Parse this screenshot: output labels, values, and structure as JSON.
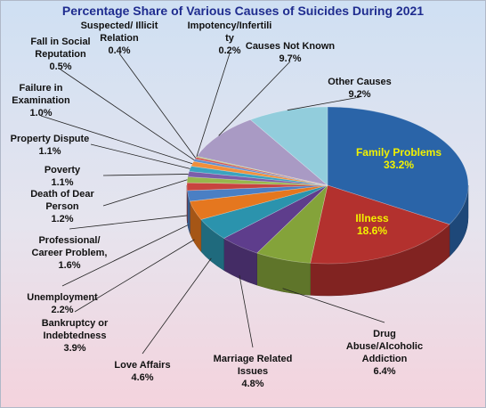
{
  "chart_data": {
    "type": "pie",
    "title": "Percentage Share of Various Causes of Suicides During 2021",
    "slices": [
      {
        "label": "Family Problems",
        "value": 33.2,
        "display": "33.2%",
        "color": "#2a64a8"
      },
      {
        "label": "Illness",
        "value": 18.6,
        "display": "18.6%",
        "color": "#b3312e"
      },
      {
        "label": "Drug Abuse/Alcoholic Addiction",
        "value": 6.4,
        "display": "6.4%",
        "color": "#84a33a"
      },
      {
        "label": "Marriage Related Issues",
        "value": 4.8,
        "display": "4.8%",
        "color": "#5e3d8c"
      },
      {
        "label": "Love Affairs",
        "value": 4.6,
        "display": "4.6%",
        "color": "#2b93ad"
      },
      {
        "label": "Bankruptcy or Indebtedness",
        "value": 3.9,
        "display": "3.9%",
        "color": "#e5771f"
      },
      {
        "label": "Unemployment",
        "value": 2.2,
        "display": "2.2%",
        "color": "#4a7fc4"
      },
      {
        "label": "Professional/ Career Problem,",
        "value": 1.6,
        "display": "1.6%",
        "color": "#c8443f"
      },
      {
        "label": "Death of Dear Person",
        "value": 1.2,
        "display": "1.2%",
        "color": "#97b74c"
      },
      {
        "label": "Poverty",
        "value": 1.1,
        "display": "1.1%",
        "color": "#7c5ea9"
      },
      {
        "label": "Property Dispute",
        "value": 1.1,
        "display": "1.1%",
        "color": "#3aa4c0"
      },
      {
        "label": "Failure in Examination",
        "value": 1.0,
        "display": "1.0%",
        "color": "#f18f3b"
      },
      {
        "label": "Fall in Social Reputation",
        "value": 0.5,
        "display": "0.5%",
        "color": "#5e8fd0"
      },
      {
        "label": "Suspected/ Illicit Relation",
        "value": 0.4,
        "display": "0.4%",
        "color": "#d25a56"
      },
      {
        "label": "Impotency/Infertility",
        "value": 0.2,
        "display": "0.2%",
        "color": "#a9c565"
      },
      {
        "label": "Causes Not Known",
        "value": 9.7,
        "display": "9.7%",
        "color": "#a99ac4"
      },
      {
        "label": "Other Causes",
        "value": 9.2,
        "display": "9.2%",
        "color": "#92cddc"
      }
    ]
  }
}
